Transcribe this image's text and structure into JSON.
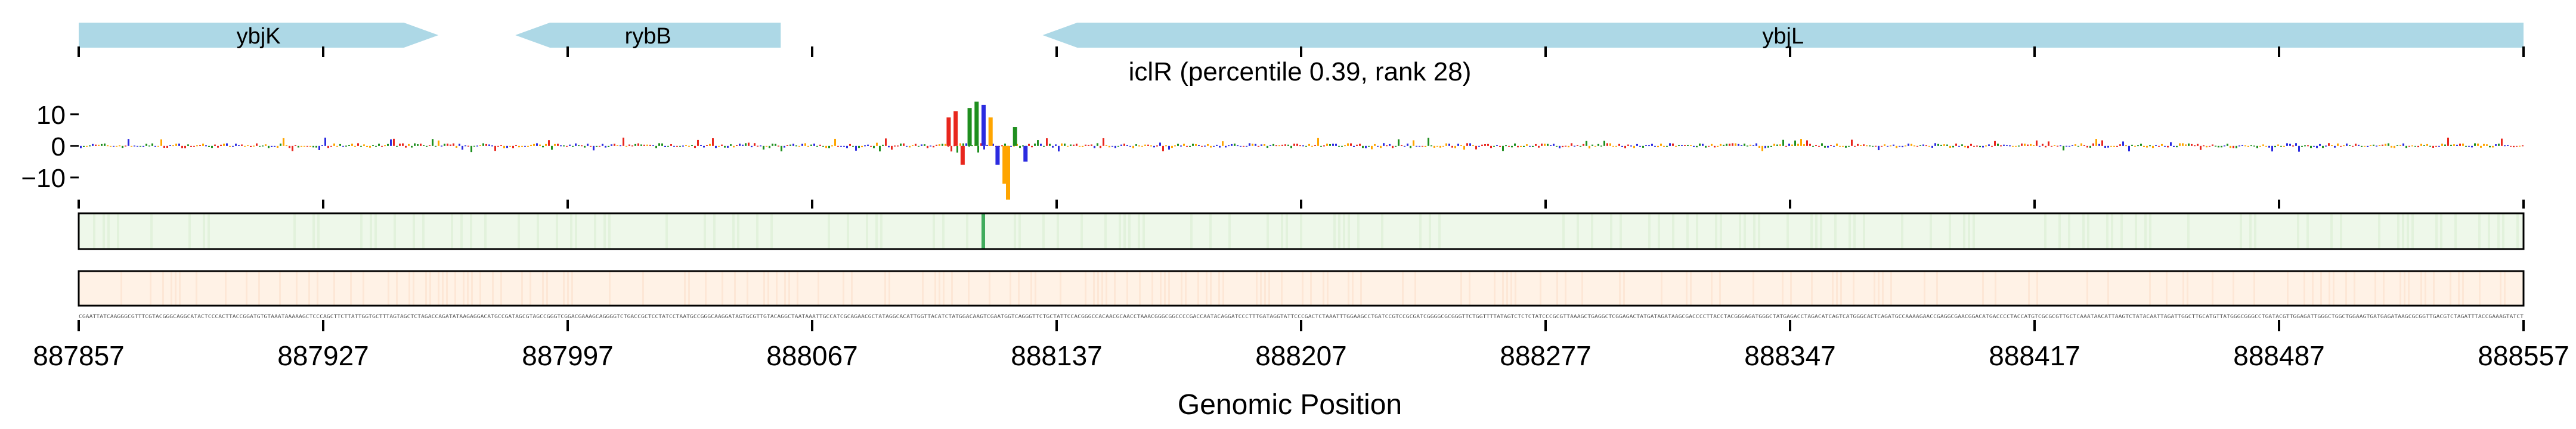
{
  "chart_data": {
    "type": "genome-track",
    "title": "iclR (percentile 0.39, rank 28)",
    "xlabel": "Genomic Position",
    "xlim": [
      887857,
      888557
    ],
    "x_ticks": [
      887857,
      887927,
      887997,
      888067,
      888137,
      888207,
      888277,
      888347,
      888417,
      888487,
      888557
    ],
    "x_tick_labels": [
      "887857",
      "887927",
      "887997",
      "888067",
      "888137",
      "888207",
      "888277",
      "888347",
      "888417",
      "888487",
      "888557"
    ],
    "genes": [
      {
        "name": "ybjK",
        "start": 887857,
        "end": 887960,
        "strand": "+"
      },
      {
        "name": "rybB",
        "start": 887982,
        "end": 888058,
        "strand": "-"
      },
      {
        "name": "ybjL",
        "start": 888133,
        "end": 888557,
        "strand": "-"
      }
    ],
    "attribution_track": {
      "ylim": [
        -17,
        16
      ],
      "y_ticks": [
        10,
        0,
        -10
      ],
      "y_tick_labels": [
        "10",
        "0",
        "−10"
      ],
      "peaks": [
        {
          "x": 888106,
          "value": 9,
          "base": "A"
        },
        {
          "x": 888108,
          "value": 11,
          "base": "A"
        },
        {
          "x": 888110,
          "value": -6,
          "base": "A"
        },
        {
          "x": 888112,
          "value": 12,
          "base": "G"
        },
        {
          "x": 888114,
          "value": 14,
          "base": "G"
        },
        {
          "x": 888116,
          "value": 13,
          "base": "C"
        },
        {
          "x": 888118,
          "value": 9,
          "base": "T"
        },
        {
          "x": 888120,
          "value": -6,
          "base": "C"
        },
        {
          "x": 888122,
          "value": -12,
          "base": "T"
        },
        {
          "x": 888123,
          "value": -17,
          "base": "T"
        },
        {
          "x": 888125,
          "value": 6,
          "base": "G"
        },
        {
          "x": 888128,
          "value": -5,
          "base": "C"
        }
      ]
    },
    "colors": {
      "gene": "#add8e6",
      "A": "#e8261d",
      "C": "#2b2be0",
      "G": "#1f8f1f",
      "T": "#ffa500",
      "heat1": "#eef8ea",
      "heat1_peak": "#41ab5d",
      "heat2": "#fff2e6"
    }
  }
}
